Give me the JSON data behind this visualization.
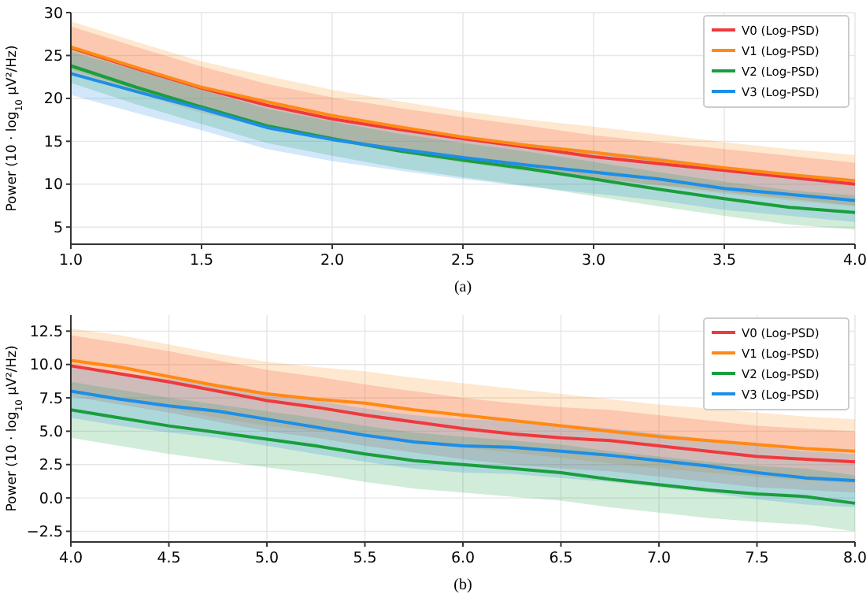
{
  "chart_data": [
    {
      "type": "line",
      "title": "(a)",
      "ylabel": "Power (10 · log$_{10}$ μV²/Hz)",
      "x": [
        1.0,
        1.25,
        1.5,
        1.75,
        2.0,
        2.25,
        2.5,
        2.75,
        3.0,
        3.25,
        3.5,
        3.75,
        4.0
      ],
      "xlim": [
        1.0,
        4.0
      ],
      "xticks": [
        {
          "value": 1.0,
          "label": "1.0"
        },
        {
          "value": 1.5,
          "label": "1.5"
        },
        {
          "value": 2.0,
          "label": "2.0"
        },
        {
          "value": 2.5,
          "label": "2.5"
        },
        {
          "value": 3.0,
          "label": "3.0"
        },
        {
          "value": 3.5,
          "label": "3.5"
        },
        {
          "value": 4.0,
          "label": "4.0"
        }
      ],
      "ylim": [
        3,
        30
      ],
      "yticks": [
        5,
        10,
        15,
        20,
        25,
        30
      ],
      "grid": true,
      "legend": "top right",
      "line_style": "solid",
      "marker": "none",
      "series": [
        {
          "name": "V0 (Log-PSD)",
          "color": "#f0393c",
          "values": [
            25.9,
            23.5,
            21.2,
            19.2,
            17.6,
            16.4,
            15.3,
            14.3,
            13.2,
            12.4,
            11.6,
            10.8,
            10.0
          ],
          "lower": [
            23.4,
            21.0,
            18.7,
            16.7,
            15.1,
            13.9,
            12.8,
            11.8,
            10.7,
            9.9,
            9.1,
            8.3,
            7.5
          ],
          "upper": [
            28.4,
            26.0,
            23.7,
            21.7,
            20.1,
            18.9,
            17.8,
            16.8,
            15.7,
            14.9,
            14.1,
            13.3,
            12.5
          ]
        },
        {
          "name": "V1 (Log-PSD)",
          "color": "#ff8a14",
          "values": [
            26.0,
            23.6,
            21.3,
            19.6,
            18.0,
            16.7,
            15.5,
            14.5,
            13.7,
            12.8,
            11.9,
            11.1,
            10.4
          ],
          "lower": [
            23.0,
            20.6,
            18.3,
            16.6,
            15.0,
            13.7,
            12.5,
            11.5,
            10.7,
            9.8,
            8.9,
            8.1,
            7.4
          ],
          "upper": [
            29.0,
            26.6,
            24.3,
            22.6,
            21.0,
            19.7,
            18.5,
            17.5,
            16.7,
            15.8,
            14.9,
            14.1,
            13.4
          ]
        },
        {
          "name": "V2 (Log-PSD)",
          "color": "#1a9e3c",
          "values": [
            23.8,
            21.3,
            19.0,
            16.8,
            15.3,
            13.9,
            12.8,
            11.8,
            10.6,
            9.4,
            8.3,
            7.3,
            6.7
          ],
          "lower": [
            21.8,
            19.3,
            17.0,
            14.8,
            13.3,
            11.9,
            10.8,
            9.8,
            8.6,
            7.4,
            6.3,
            5.3,
            4.7
          ],
          "upper": [
            25.8,
            23.3,
            21.0,
            18.8,
            17.3,
            15.9,
            14.8,
            13.8,
            12.6,
            11.4,
            10.3,
            9.3,
            8.7
          ]
        },
        {
          "name": "V3 (Log-PSD)",
          "color": "#1e8ee6",
          "values": [
            22.9,
            20.8,
            18.8,
            16.6,
            15.2,
            14.1,
            13.1,
            12.2,
            11.4,
            10.6,
            9.5,
            8.8,
            8.1
          ],
          "lower": [
            20.4,
            18.3,
            16.3,
            14.1,
            12.7,
            11.6,
            10.6,
            9.7,
            8.9,
            8.1,
            7.0,
            6.3,
            5.6
          ],
          "upper": [
            25.4,
            23.3,
            21.3,
            19.1,
            17.7,
            16.6,
            15.6,
            14.7,
            13.9,
            13.1,
            12.0,
            11.3,
            10.6
          ]
        }
      ]
    },
    {
      "type": "line",
      "title": "(b)",
      "ylabel": "Power (10 · log$_{10}$ μV²/Hz)",
      "x": [
        4.0,
        4.25,
        4.5,
        4.75,
        5.0,
        5.25,
        5.5,
        5.75,
        6.0,
        6.25,
        6.5,
        6.75,
        7.0,
        7.25,
        7.5,
        7.75,
        8.0
      ],
      "xlim": [
        4.0,
        8.0
      ],
      "xticks": [
        {
          "value": 4.0,
          "label": "4.0"
        },
        {
          "value": 4.5,
          "label": "4.5"
        },
        {
          "value": 5.0,
          "label": "5.0"
        },
        {
          "value": 5.5,
          "label": "5.5"
        },
        {
          "value": 6.0,
          "label": "6.0"
        },
        {
          "value": 6.5,
          "label": "6.5"
        },
        {
          "value": 7.0,
          "label": "7.0"
        },
        {
          "value": 7.5,
          "label": "7.5"
        },
        {
          "value": 8.0,
          "label": "8.0"
        }
      ],
      "ylim": [
        -3.3,
        13.7
      ],
      "yticks": [
        {
          "value": -2.5,
          "label": "−2.5"
        },
        {
          "value": 0,
          "label": "0.0"
        },
        {
          "value": 2.5,
          "label": "2.5"
        },
        {
          "value": 5,
          "label": "5.0"
        },
        {
          "value": 7.5,
          "label": "7.5"
        },
        {
          "value": 10,
          "label": "10.0"
        },
        {
          "value": 12.5,
          "label": "12.5"
        }
      ],
      "grid": true,
      "legend": "top right",
      "line_style": "solid",
      "marker": "none",
      "series": [
        {
          "name": "V0 (Log-PSD)",
          "color": "#f0393c",
          "values": [
            9.9,
            9.3,
            8.7,
            8.0,
            7.3,
            6.8,
            6.2,
            5.7,
            5.2,
            4.8,
            4.5,
            4.3,
            3.9,
            3.5,
            3.1,
            2.9,
            2.7
          ],
          "lower": [
            7.6,
            7.0,
            6.4,
            5.7,
            5.0,
            4.5,
            3.9,
            3.4,
            2.9,
            2.5,
            2.2,
            2.0,
            1.6,
            1.2,
            0.8,
            0.6,
            0.4
          ],
          "upper": [
            12.2,
            11.6,
            11.0,
            10.3,
            9.6,
            9.1,
            8.5,
            8.0,
            7.5,
            7.1,
            6.8,
            6.6,
            6.2,
            5.8,
            5.4,
            5.2,
            5.0
          ]
        },
        {
          "name": "V1 (Log-PSD)",
          "color": "#ff8a14",
          "values": [
            10.3,
            9.8,
            9.1,
            8.4,
            7.8,
            7.4,
            7.1,
            6.6,
            6.2,
            5.8,
            5.4,
            5.0,
            4.6,
            4.3,
            4.0,
            3.7,
            3.5
          ],
          "lower": [
            7.9,
            7.4,
            6.7,
            6.0,
            5.4,
            5.0,
            4.7,
            4.2,
            3.8,
            3.4,
            3.0,
            2.6,
            2.2,
            1.9,
            1.6,
            1.3,
            1.1
          ],
          "upper": [
            12.7,
            12.2,
            11.5,
            10.8,
            10.2,
            9.8,
            9.5,
            9.0,
            8.6,
            8.2,
            7.8,
            7.4,
            7.0,
            6.7,
            6.4,
            6.1,
            5.9
          ]
        },
        {
          "name": "V2 (Log-PSD)",
          "color": "#1a9e3c",
          "values": [
            6.6,
            6.0,
            5.4,
            4.9,
            4.4,
            3.9,
            3.3,
            2.8,
            2.5,
            2.2,
            1.9,
            1.4,
            1.0,
            0.6,
            0.3,
            0.1,
            -0.4
          ],
          "lower": [
            4.5,
            3.9,
            3.3,
            2.8,
            2.3,
            1.8,
            1.2,
            0.7,
            0.4,
            0.1,
            -0.2,
            -0.7,
            -1.1,
            -1.5,
            -1.8,
            -2.0,
            -2.5
          ],
          "upper": [
            8.7,
            8.1,
            7.5,
            7.0,
            6.5,
            6.0,
            5.4,
            4.9,
            4.6,
            4.3,
            4.0,
            3.5,
            3.1,
            2.7,
            2.4,
            2.2,
            1.7
          ]
        },
        {
          "name": "V3 (Log-PSD)",
          "color": "#1e8ee6",
          "values": [
            8.0,
            7.4,
            6.9,
            6.5,
            5.9,
            5.3,
            4.7,
            4.2,
            3.9,
            3.8,
            3.5,
            3.2,
            2.8,
            2.4,
            1.9,
            1.5,
            1.3
          ],
          "lower": [
            6.0,
            5.4,
            4.9,
            4.5,
            3.9,
            3.3,
            2.7,
            2.2,
            1.9,
            1.8,
            1.5,
            1.2,
            0.8,
            0.4,
            -0.1,
            -0.5,
            -0.7
          ],
          "upper": [
            10.0,
            9.4,
            8.9,
            8.5,
            7.9,
            7.3,
            6.7,
            6.2,
            5.9,
            5.8,
            5.5,
            5.2,
            4.8,
            4.4,
            3.9,
            3.5,
            3.3
          ]
        }
      ]
    }
  ]
}
